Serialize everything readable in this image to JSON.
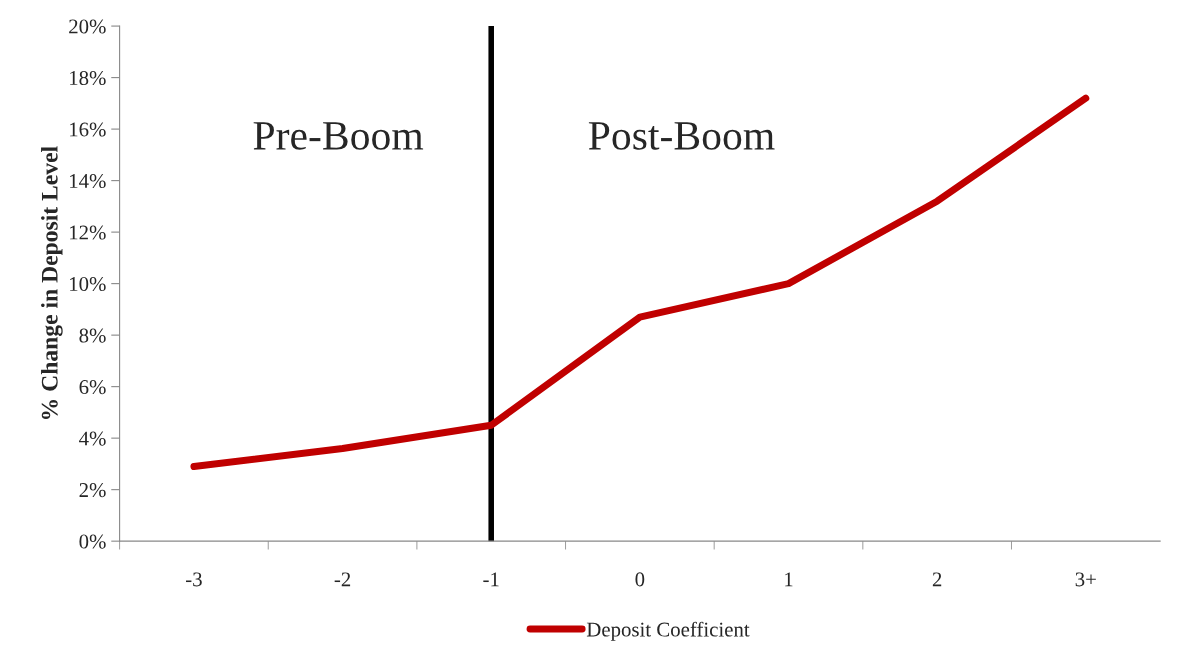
{
  "chart_data": {
    "type": "line",
    "ylabel": "% Change in Deposit Level",
    "categories": [
      "-3",
      "-2",
      "-1",
      "0",
      "1",
      "2",
      "3+"
    ],
    "series": [
      {
        "name": "Deposit Coefficient",
        "color": "#c00000",
        "values": [
          2.9,
          3.6,
          4.5,
          8.7,
          10.0,
          13.2,
          17.2
        ]
      }
    ],
    "ylim": [
      0,
      20
    ],
    "yticks": [
      {
        "value": 0,
        "label": "0%"
      },
      {
        "value": 2,
        "label": "2%"
      },
      {
        "value": 4,
        "label": "4%"
      },
      {
        "value": 6,
        "label": "6%"
      },
      {
        "value": 8,
        "label": "8%"
      },
      {
        "value": 10,
        "label": "10%"
      },
      {
        "value": 12,
        "label": "12%"
      },
      {
        "value": 14,
        "label": "14%"
      },
      {
        "value": 16,
        "label": "16%"
      },
      {
        "value": 18,
        "label": "18%"
      },
      {
        "value": 20,
        "label": "20%"
      }
    ],
    "ref_lines": [
      {
        "axis": "x",
        "value": "-1",
        "color": "#000000"
      }
    ],
    "annotations": [
      "Pre-Boom",
      "Post-Boom"
    ],
    "legend": "bottom",
    "grid": false,
    "marker": "none",
    "line_style": "solid"
  }
}
